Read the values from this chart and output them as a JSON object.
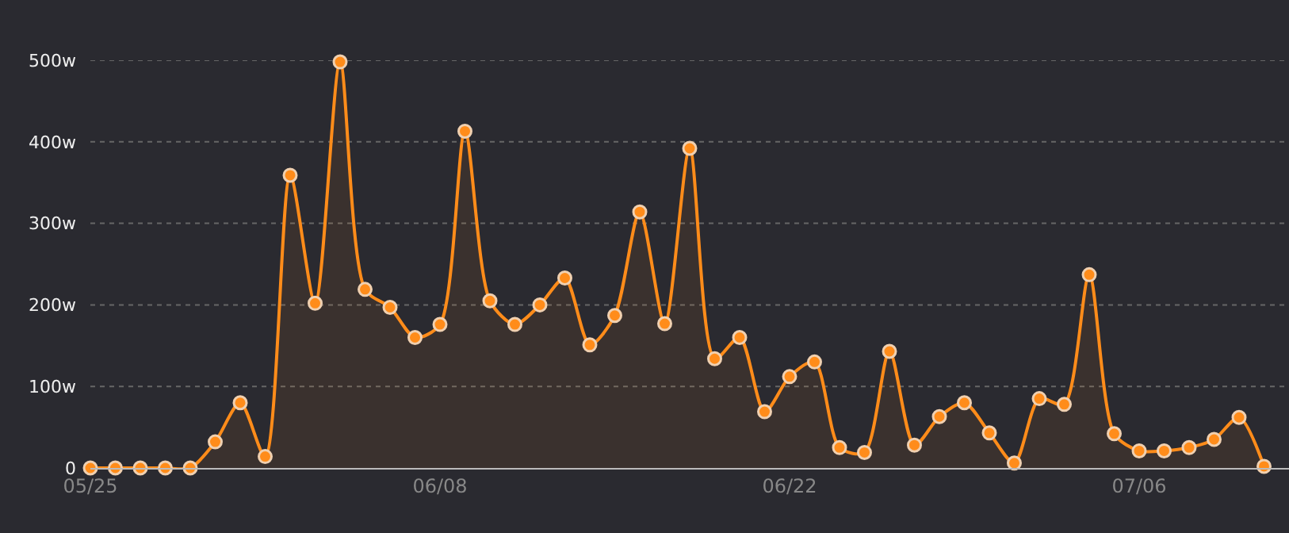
{
  "chart_data": {
    "type": "area",
    "x": [
      "--05-25",
      "--05-26",
      "--05-27",
      "--05-28",
      "--05-29",
      "--05-30",
      "--05-31",
      "--06-01",
      "--06-02",
      "--06-03",
      "--06-04",
      "--06-05",
      "--06-06",
      "--06-07",
      "--06-08",
      "--06-09",
      "--06-10",
      "--06-11",
      "--06-12",
      "--06-13",
      "--06-14",
      "--06-15",
      "--06-16",
      "--06-17",
      "--06-18",
      "--06-19",
      "--06-20",
      "--06-21",
      "--06-22",
      "--06-23",
      "--06-24",
      "--06-25",
      "--06-26",
      "--06-27",
      "--06-28",
      "--06-29",
      "--06-30",
      "--07-01",
      "--07-02",
      "--07-03",
      "--07-04",
      "--07-05",
      "--07-06",
      "--07-07",
      "--07-08",
      "--07-09",
      "--07-10",
      "--07-11"
    ],
    "series": [
      {
        "color": "#ff8c1a",
        "values": [
          0,
          0,
          0,
          0,
          0,
          32,
          80,
          14,
          359,
          202,
          498,
          219,
          197,
          160,
          176,
          413,
          205,
          176,
          200,
          233,
          151,
          187,
          314,
          177,
          392,
          134,
          160,
          69,
          112,
          130,
          25,
          19,
          143,
          28,
          63,
          80,
          43,
          6,
          85,
          78,
          237,
          42,
          21,
          21,
          25,
          35,
          62,
          2
        ]
      }
    ],
    "xlim": [
      "--05-25",
      "--07-12"
    ],
    "xticks": [
      {
        "value": "--05-25",
        "label": "05/25"
      },
      {
        "value": "--06-08",
        "label": "06/08"
      },
      {
        "value": "--06-22",
        "label": "06/22"
      },
      {
        "value": "--07-06",
        "label": "07/06"
      }
    ],
    "ylim": [
      0,
      500
    ],
    "yticks": [
      0,
      {
        "value": 100,
        "label": "100w"
      },
      {
        "value": 200,
        "label": "200w"
      },
      {
        "value": 300,
        "label": "300w"
      },
      {
        "value": 400,
        "label": "400w"
      },
      {
        "value": 500,
        "label": "500w"
      }
    ],
    "grid": "y",
    "marker": "circle",
    "line_style": "solid"
  }
}
